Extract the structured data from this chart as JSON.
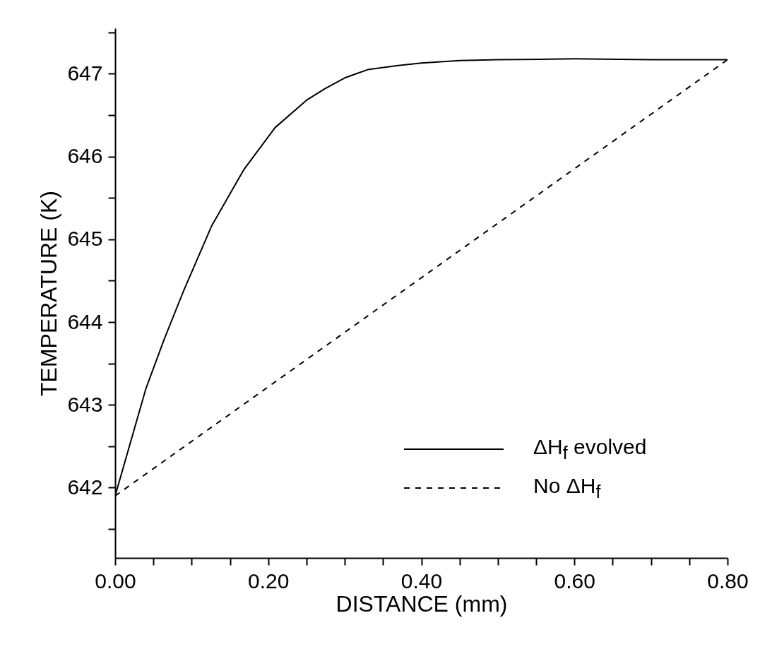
{
  "chart_data": {
    "type": "line",
    "xlabel": "DISTANCE (mm)",
    "ylabel": "TEMPERATURE (K)",
    "xlim": [
      0,
      0.8
    ],
    "ylim": [
      641.15,
      647.55
    ],
    "xticks": [
      {
        "value": 0,
        "label": "0.00"
      },
      {
        "value": 0.05,
        "label": null
      },
      {
        "value": 0.1,
        "label": null
      },
      {
        "value": 0.15,
        "label": null
      },
      {
        "value": 0.2,
        "label": "0.20"
      },
      {
        "value": 0.25,
        "label": null
      },
      {
        "value": 0.3,
        "label": null
      },
      {
        "value": 0.35,
        "label": null
      },
      {
        "value": 0.4,
        "label": "0.40"
      },
      {
        "value": 0.45,
        "label": null
      },
      {
        "value": 0.5,
        "label": null
      },
      {
        "value": 0.55,
        "label": null
      },
      {
        "value": 0.6,
        "label": "0.60"
      },
      {
        "value": 0.65,
        "label": null
      },
      {
        "value": 0.7,
        "label": null
      },
      {
        "value": 0.75,
        "label": null
      },
      {
        "value": 0.8,
        "label": "0.80"
      }
    ],
    "yticks": [
      {
        "value": 641.5,
        "label": null
      },
      642,
      {
        "value": 642.5,
        "label": null
      },
      643,
      {
        "value": 643.5,
        "label": null
      },
      644,
      {
        "value": 644.5,
        "label": null
      },
      645,
      {
        "value": 645.5,
        "label": null
      },
      646,
      {
        "value": 646.5,
        "label": null
      },
      647,
      {
        "value": 647.5,
        "label": null
      }
    ],
    "grid": false,
    "legend": "bottom right",
    "marker": "none",
    "series": [
      {
        "name": "ΔH$_{f}$ evolved",
        "color": "#000000",
        "line_style": "solid",
        "x": [
          0,
          0.04,
          0.064,
          0.09,
          0.126,
          0.168,
          0.209,
          0.25,
          0.274,
          0.3,
          0.33,
          0.37,
          0.4,
          0.45,
          0.5,
          0.6,
          0.7,
          0.8
        ],
        "values": [
          641.9,
          643.19,
          643.79,
          644.39,
          645.16,
          645.84,
          646.35,
          646.68,
          646.82,
          646.95,
          647.05,
          647.1,
          647.13,
          647.16,
          647.17,
          647.18,
          647.17,
          647.17
        ]
      },
      {
        "name": "No ΔH$_{f}$",
        "color": "#000000",
        "line_style": "dashed",
        "x": [
          0,
          0.8
        ],
        "values": [
          641.9,
          647.17
        ]
      }
    ]
  }
}
